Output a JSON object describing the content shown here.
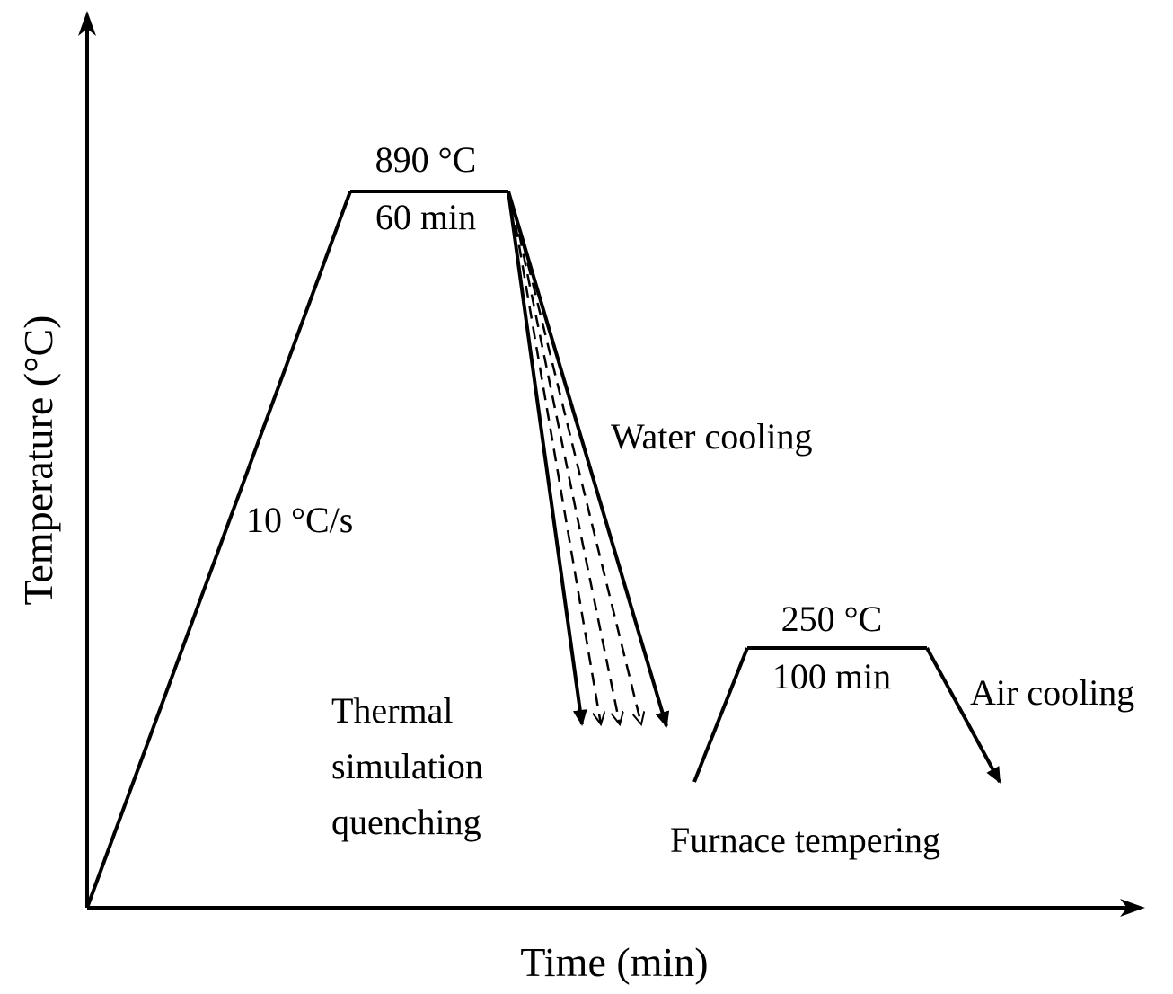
{
  "axes": {
    "x_label": "Time (min)",
    "y_label": "Temperature (°C)"
  },
  "labels": {
    "austenitize_temp": "890 °C",
    "austenitize_time": "60 min",
    "heating_rate": "10 °C/s",
    "water_cooling": "Water cooling",
    "thermal_line1": "Thermal",
    "thermal_line2": "simulation",
    "thermal_line3": "quenching",
    "temper_temp": "250 °C",
    "temper_time": "100 min",
    "air_cooling": "Air cooling",
    "furnace_tempering": "Furnace tempering"
  },
  "colors": {
    "line": "#000000",
    "background": "#ffffff"
  }
}
